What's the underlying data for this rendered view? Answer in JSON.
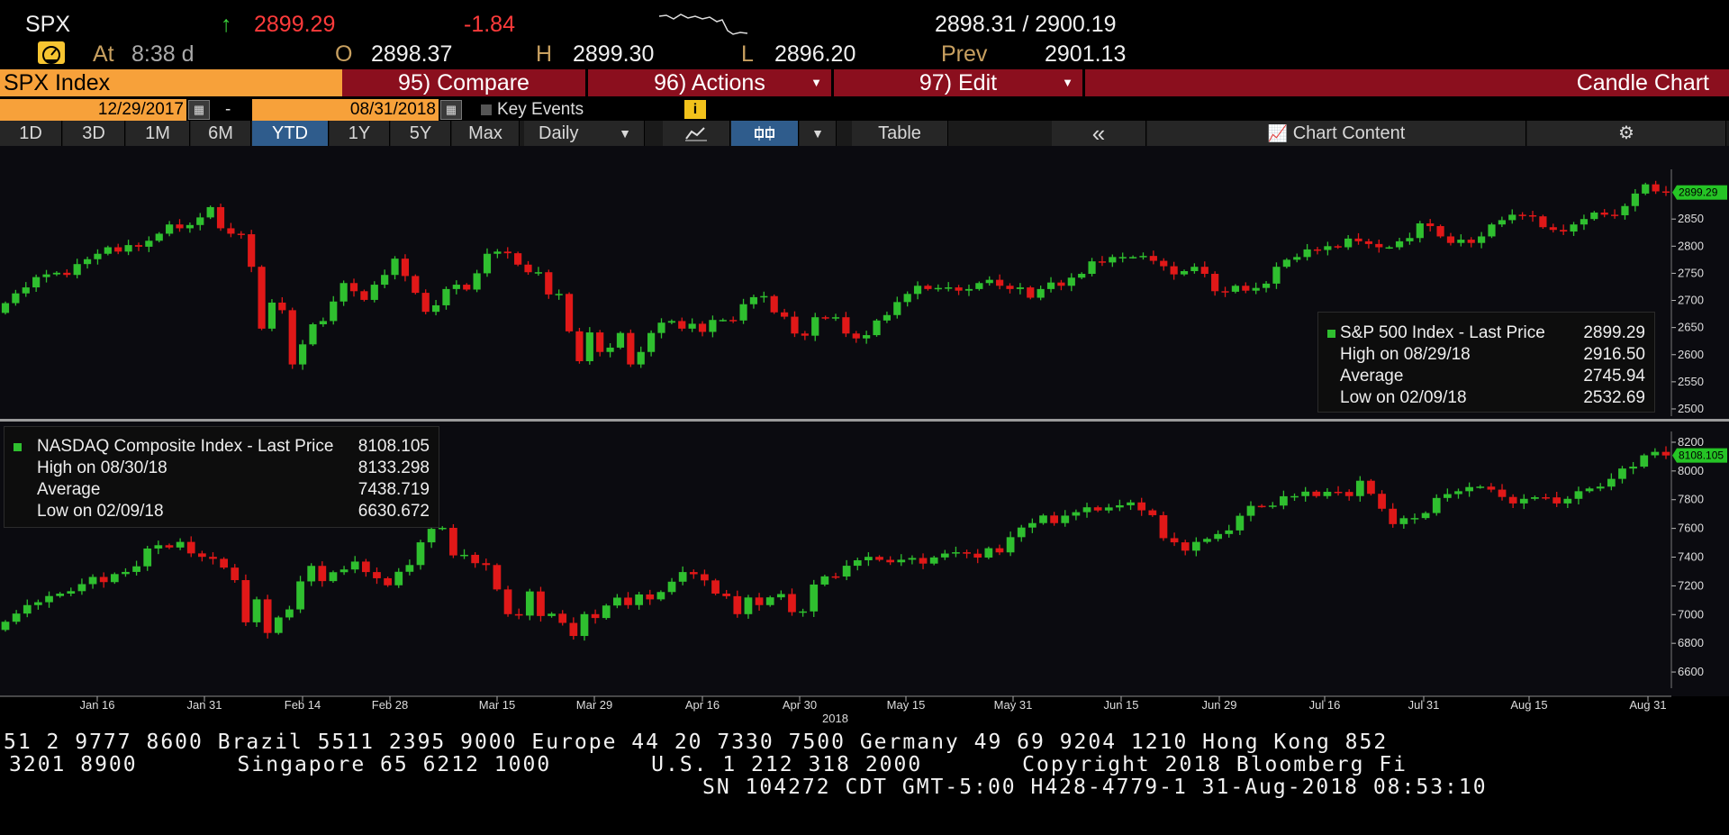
{
  "quote": {
    "ticker": "SPX",
    "arrow": "↑",
    "last": "2899.29",
    "change": "-1.84",
    "bid_ask": "2898.31 / 2900.19",
    "at_label": "At",
    "time": "8:38 d",
    "open_label": "O",
    "open": "2898.37",
    "high_label": "H",
    "high": "2899.30",
    "low_label": "L",
    "low": "2896.20",
    "prev_label": "Prev",
    "prev": "2901.13"
  },
  "menubar": {
    "security": "SPX Index",
    "compare": "95) Compare",
    "actions": "96) Actions",
    "edit": "97) Edit",
    "title": "Candle Chart"
  },
  "dates": {
    "start": "12/29/2017",
    "separator": "-",
    "end": "08/31/2018",
    "key_events": "Key Events",
    "info": "i"
  },
  "toolbar": {
    "periods": [
      "1D",
      "3D",
      "1M",
      "6M",
      "YTD",
      "1Y",
      "5Y",
      "Max"
    ],
    "selected": "YTD",
    "frequency": "Daily",
    "table": "Table",
    "collapse": "«",
    "chart_content": "Chart Content",
    "settings": "⚙"
  },
  "colors": {
    "up": "#2fbf2f",
    "down": "#e01818",
    "background": "#0b0b10",
    "accent": "#f7a13a"
  },
  "legend_top": {
    "title": "S&P 500 Index - Last Price",
    "title_value": "2899.29",
    "high_label": "High on 08/29/18",
    "high_value": "2916.50",
    "avg_label": "Average",
    "avg_value": "2745.94",
    "low_label": "Low on 02/09/18",
    "low_value": "2532.69"
  },
  "legend_bottom": {
    "title": "NASDAQ Composite Index - Last Price",
    "title_value": "8108.105",
    "high_label": "High on 08/30/18",
    "high_value": "8133.298",
    "avg_label": "Average",
    "avg_value": "7438.719",
    "low_label": "Low on 02/09/18",
    "low_value": "6630.672"
  },
  "x_axis": {
    "labels": [
      "Jan 16",
      "Jan 31",
      "Feb 14",
      "Feb 28",
      "Mar 15",
      "Mar 29",
      "Apr 16",
      "Apr 30",
      "May 15",
      "May 31",
      "Jun 15",
      "Jun 29",
      "Jul 16",
      "Jul 31",
      "Aug 15",
      "Aug 31"
    ],
    "year": "2018"
  },
  "footer": {
    "line1": "51 2 9777 8600 Brazil 5511 2395 9000 Europe 44 20 7330 7500 Germany 49 69 9204 1210 Hong Kong 852",
    "line2": "3201 8900       Singapore 65 6212 1000       U.S. 1 212 318 2000       Copyright 2018 Bloomberg Fi",
    "line3": "SN 104272 CDT  GMT-5:00 H428-4779-1 31-Aug-2018 08:53:10"
  },
  "chart_data": [
    {
      "type": "candlestick",
      "title": "S&P 500 Index - Last Price",
      "ylim": [
        2490,
        2935
      ],
      "yticks": [
        2500,
        2550,
        2600,
        2650,
        2700,
        2750,
        2800,
        2850
      ],
      "last_label": "2899.29",
      "x": [
        "Jan 16",
        "Jan 31",
        "Feb 14",
        "Feb 28",
        "Mar 15",
        "Mar 29",
        "Apr 16",
        "Apr 30",
        "May 15",
        "May 31",
        "Jun 15",
        "Jun 29",
        "Jul 16",
        "Jul 31",
        "Aug 15",
        "Aug 31"
      ],
      "closes": [
        2695,
        2713,
        2724,
        2743,
        2748,
        2751,
        2747,
        2767,
        2776,
        2786,
        2798,
        2790,
        2802,
        2799,
        2810,
        2823,
        2840,
        2833,
        2839,
        2853,
        2872,
        2833,
        2823,
        2822,
        2762,
        2648,
        2696,
        2682,
        2582,
        2619,
        2656,
        2662,
        2698,
        2732,
        2717,
        2701,
        2729,
        2747,
        2777,
        2745,
        2714,
        2679,
        2691,
        2721,
        2729,
        2720,
        2750,
        2786,
        2790,
        2787,
        2766,
        2752,
        2752,
        2711,
        2712,
        2643,
        2588,
        2641,
        2605,
        2613,
        2640,
        2582,
        2605,
        2640,
        2659,
        2662,
        2648,
        2657,
        2642,
        2664,
        2664,
        2663,
        2693,
        2706,
        2708,
        2678,
        2670,
        2639,
        2635,
        2669,
        2667,
        2669,
        2639,
        2630,
        2636,
        2663,
        2673,
        2697,
        2712,
        2727,
        2721,
        2723,
        2724,
        2718,
        2721,
        2732,
        2738,
        2727,
        2721,
        2724,
        2705,
        2721,
        2733,
        2727,
        2742,
        2749,
        2772,
        2770,
        2780,
        2780,
        2780,
        2782,
        2773,
        2763,
        2748,
        2754,
        2762,
        2749,
        2717,
        2716,
        2727,
        2718,
        2723,
        2731,
        2762,
        2775,
        2780,
        2794,
        2793,
        2800,
        2798,
        2814,
        2809,
        2804,
        2798,
        2798,
        2809,
        2815,
        2842,
        2837,
        2818,
        2806,
        2812,
        2806,
        2818,
        2840,
        2848,
        2858,
        2857,
        2855,
        2835,
        2830,
        2827,
        2840,
        2850,
        2862,
        2858,
        2857,
        2874,
        2897,
        2914,
        2901,
        2899
      ],
      "high": 2916.5,
      "average": 2745.94,
      "low": 2532.69
    },
    {
      "type": "candlestick",
      "title": "NASDAQ Composite Index - Last Price",
      "ylim": [
        6500,
        8250
      ],
      "yticks": [
        6600,
        6800,
        7000,
        7200,
        7400,
        7600,
        7800,
        8000,
        8200
      ],
      "last_label": "8108.105",
      "x": [
        "Jan 16",
        "Jan 31",
        "Feb 14",
        "Feb 28",
        "Mar 15",
        "Mar 29",
        "Apr 16",
        "Apr 30",
        "May 15",
        "May 31",
        "Jun 15",
        "Jun 29",
        "Jul 16",
        "Jul 31",
        "Aug 15",
        "Aug 31"
      ],
      "closes": [
        6950,
        7007,
        7066,
        7086,
        7129,
        7146,
        7163,
        7212,
        7262,
        7226,
        7282,
        7297,
        7336,
        7460,
        7483,
        7467,
        7506,
        7426,
        7402,
        7388,
        7327,
        7240,
        6946,
        7106,
        6872,
        6980,
        7036,
        7231,
        7339,
        7233,
        7295,
        7314,
        7369,
        7296,
        7253,
        7204,
        7298,
        7345,
        7503,
        7597,
        7604,
        7412,
        7416,
        7358,
        7345,
        7175,
        7003,
        6993,
        7161,
        6990,
        7006,
        6942,
        6851,
        7003,
        6976,
        7063,
        7118,
        7066,
        7140,
        7106,
        7157,
        7229,
        7296,
        7281,
        7238,
        7146,
        7128,
        7003,
        7119,
        7066,
        7120,
        7143,
        7017,
        7022,
        7209,
        7266,
        7265,
        7340,
        7378,
        7402,
        7381,
        7364,
        7382,
        7394,
        7355,
        7398,
        7425,
        7434,
        7424,
        7397,
        7462,
        7433,
        7539,
        7606,
        7637,
        7690,
        7637,
        7689,
        7713,
        7747,
        7725,
        7746,
        7761,
        7781,
        7726,
        7692,
        7532,
        7503,
        7445,
        7506,
        7527,
        7561,
        7586,
        7688,
        7757,
        7756,
        7759,
        7824,
        7825,
        7856,
        7825,
        7855,
        7854,
        7825,
        7932,
        7841,
        7737,
        7630,
        7671,
        7672,
        7707,
        7812,
        7839,
        7859,
        7888,
        7891,
        7870,
        7819,
        7774,
        7806,
        7817,
        7816,
        7774,
        7806,
        7859,
        7878,
        7891,
        7945,
        8017,
        8030,
        8109,
        8133,
        8108
      ],
      "high": 8133.298,
      "average": 7438.719,
      "low": 6630.672
    }
  ]
}
